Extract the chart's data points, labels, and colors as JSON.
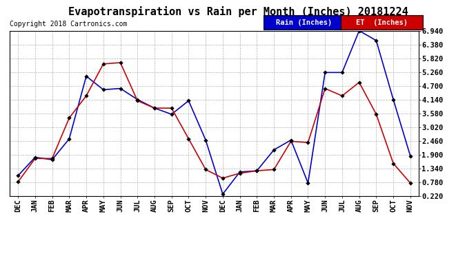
{
  "title": "Evapotranspiration vs Rain per Month (Inches) 20181224",
  "copyright": "Copyright 2018 Cartronics.com",
  "x_labels": [
    "DEC",
    "JAN",
    "FEB",
    "MAR",
    "APR",
    "MAY",
    "JUN",
    "JUL",
    "AUG",
    "SEP",
    "OCT",
    "NOV",
    "DEC",
    "JAN",
    "FEB",
    "MAR",
    "APR",
    "MAY",
    "JUN",
    "JUL",
    "AUG",
    "SEP",
    "OCT",
    "NOV"
  ],
  "rain_inches": [
    1.05,
    1.8,
    1.7,
    2.55,
    5.1,
    4.55,
    4.6,
    4.15,
    3.8,
    3.55,
    4.1,
    2.5,
    0.3,
    1.2,
    1.25,
    2.1,
    2.5,
    0.75,
    5.25,
    5.25,
    6.95,
    6.55,
    4.15,
    1.85
  ],
  "et_inches": [
    0.8,
    1.75,
    1.75,
    3.4,
    4.3,
    5.6,
    5.65,
    4.1,
    3.8,
    3.8,
    2.55,
    1.3,
    0.95,
    1.15,
    1.25,
    1.3,
    2.45,
    2.4,
    4.6,
    4.3,
    4.85,
    3.55,
    1.55,
    0.75
  ],
  "rain_color": "#0000cc",
  "et_color": "#cc0000",
  "background_color": "#ffffff",
  "grid_color": "#aaaaaa",
  "ylim_min": 0.22,
  "ylim_max": 6.94,
  "yticks": [
    0.22,
    0.78,
    1.34,
    1.9,
    2.46,
    3.02,
    3.58,
    4.14,
    4.7,
    5.26,
    5.82,
    6.38,
    6.94
  ],
  "legend_rain_label": "Rain (Inches)",
  "legend_et_label": "ET  (Inches)",
  "title_fontsize": 11,
  "copyright_fontsize": 7,
  "axis_fontsize": 7.5,
  "legend_fontsize": 7.5
}
